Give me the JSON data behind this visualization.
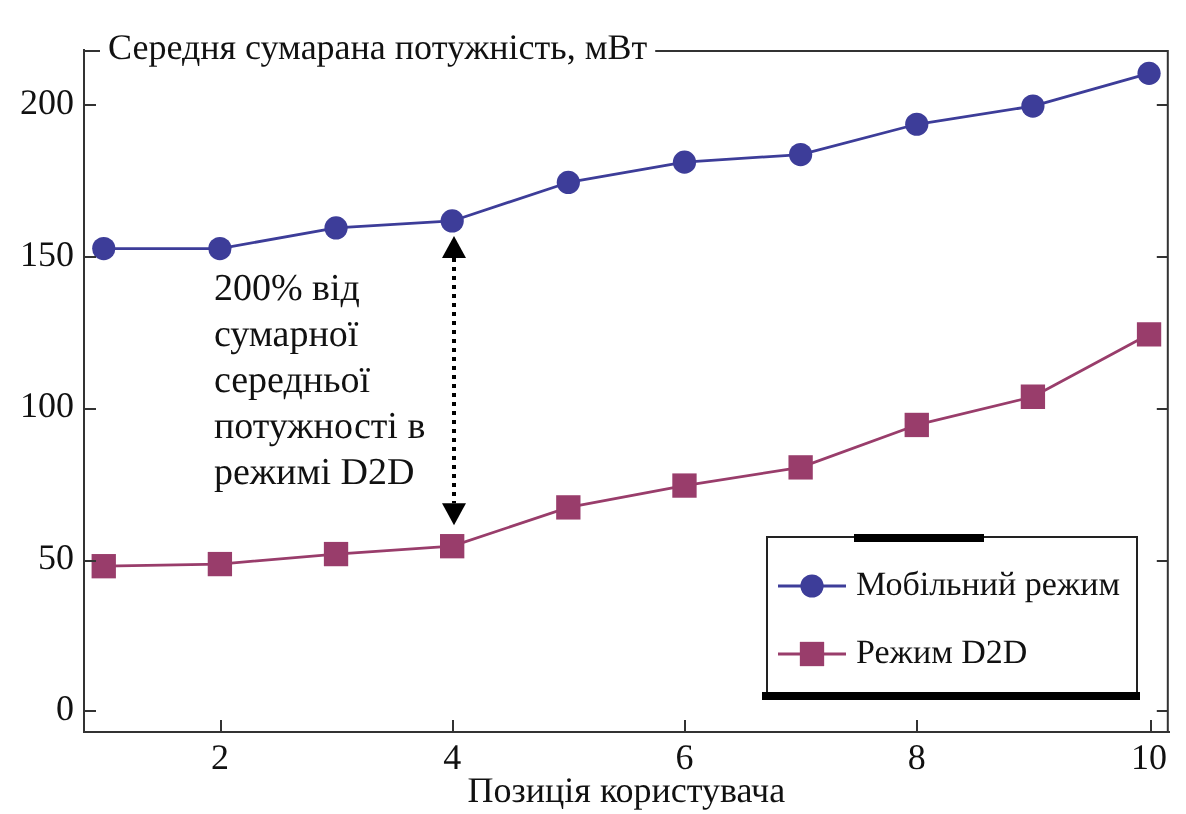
{
  "chart_data": {
    "type": "line",
    "ylabel": "Середня сумарана потужність, мВт",
    "xlabel": "Позиція користувача",
    "x": [
      1,
      2,
      3,
      4,
      5,
      6,
      7,
      8,
      9,
      10
    ],
    "series": [
      {
        "name": "Мобільний режим",
        "color": "#3d3d99",
        "marker": "circle",
        "values": [
          152.5,
          152.5,
          159.3,
          161.6,
          174.3,
          181,
          183.5,
          193.5,
          199.5,
          210.3
        ]
      },
      {
        "name": "Режим D2D",
        "color": "#993d6b",
        "marker": "square",
        "values": [
          47.7,
          48.4,
          51.7,
          54.3,
          67.1,
          74.3,
          80.3,
          94.3,
          103.6,
          124.2
        ]
      }
    ],
    "xlim": [
      0.83,
      10.17
    ],
    "xticks": [
      2,
      4,
      6,
      8,
      10
    ],
    "ylim": [
      -7,
      218
    ],
    "yticks": [
      0,
      50,
      100,
      150,
      200
    ],
    "legend": "bottom right",
    "annotations": [
      "200% від сумарної середньої потужності в режимі D2D"
    ]
  }
}
